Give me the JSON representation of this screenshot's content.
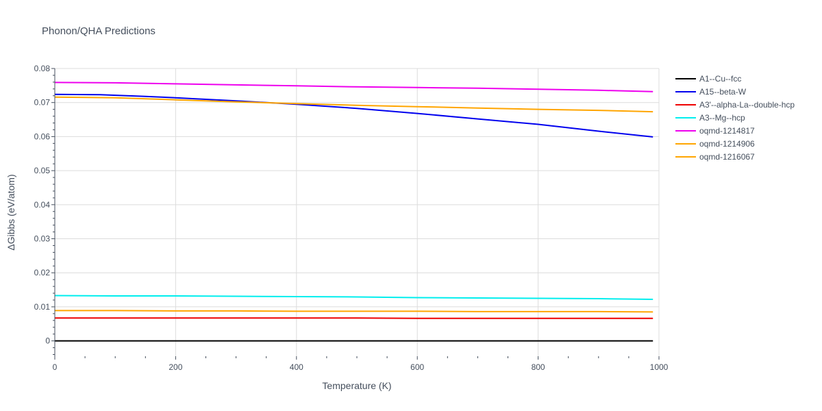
{
  "chart_data": {
    "type": "line",
    "title": "Phonon/QHA Predictions",
    "xlabel": "Temperature (K)",
    "ylabel": "ΔGibbs (eV/atom)",
    "xlim": [
      0,
      1000
    ],
    "ylim": [
      -0.0045,
      0.08
    ],
    "x_ticks": [
      0,
      200,
      400,
      600,
      800,
      1000
    ],
    "x_tick_labels": [
      "0",
      "200",
      "400",
      "600",
      "800",
      "1000"
    ],
    "y_ticks": [
      0,
      0.01,
      0.02,
      0.03,
      0.04,
      0.05,
      0.06,
      0.07,
      0.08
    ],
    "y_tick_labels": [
      "0",
      "0.01",
      "0.02",
      "0.03",
      "0.04",
      "0.05",
      "0.06",
      "0.07",
      "0.08"
    ],
    "grid": true,
    "legend_position": "right",
    "series": [
      {
        "name": "A1--Cu--fcc",
        "color": "#000000",
        "x": [
          0,
          100,
          200,
          300,
          400,
          500,
          600,
          700,
          800,
          900,
          990
        ],
        "y": [
          0,
          0,
          0,
          0,
          0,
          0,
          0,
          0,
          0,
          0,
          0
        ]
      },
      {
        "name": "A15--beta-W",
        "color": "#0000ee",
        "x": [
          0,
          75,
          150,
          200,
          300,
          400,
          500,
          600,
          700,
          800,
          900,
          990
        ],
        "y": [
          0.0724,
          0.0723,
          0.0718,
          0.0714,
          0.0705,
          0.0695,
          0.0683,
          0.0668,
          0.0652,
          0.0636,
          0.0616,
          0.0599
        ]
      },
      {
        "name": "A3'--alpha-La--double-hcp",
        "color": "#ee0000",
        "x": [
          0,
          100,
          200,
          300,
          400,
          500,
          600,
          700,
          800,
          900,
          990
        ],
        "y": [
          0.0067,
          0.0067,
          0.0067,
          0.0067,
          0.0067,
          0.0067,
          0.0066,
          0.0066,
          0.0066,
          0.0066,
          0.0066
        ]
      },
      {
        "name": "A3--Mg--hcp",
        "color": "#00eeee",
        "x": [
          0,
          100,
          200,
          300,
          400,
          500,
          600,
          700,
          800,
          900,
          990
        ],
        "y": [
          0.0133,
          0.0132,
          0.0132,
          0.0131,
          0.013,
          0.0129,
          0.0127,
          0.0126,
          0.0125,
          0.0124,
          0.0122
        ]
      },
      {
        "name": "oqmd-1214817",
        "color": "#ee00ee",
        "x": [
          0,
          100,
          200,
          300,
          400,
          500,
          600,
          700,
          800,
          900,
          990
        ],
        "y": [
          0.0759,
          0.0758,
          0.0755,
          0.0752,
          0.0749,
          0.0746,
          0.0744,
          0.0742,
          0.0739,
          0.0736,
          0.0732
        ]
      },
      {
        "name": "oqmd-1214906",
        "color": "#ffa500",
        "x": [
          0,
          100,
          200,
          300,
          400,
          500,
          600,
          700,
          800,
          900,
          990
        ],
        "y": [
          0.0716,
          0.0714,
          0.0708,
          0.0702,
          0.0697,
          0.0692,
          0.0688,
          0.0684,
          0.068,
          0.0677,
          0.0673
        ]
      },
      {
        "name": "oqmd-1216067",
        "color": "#ffa500",
        "x": [
          0,
          100,
          200,
          300,
          400,
          500,
          600,
          700,
          800,
          900,
          990
        ],
        "y": [
          0.0089,
          0.0089,
          0.0088,
          0.0088,
          0.0087,
          0.0087,
          0.0087,
          0.0086,
          0.0086,
          0.0086,
          0.0085
        ]
      }
    ]
  }
}
